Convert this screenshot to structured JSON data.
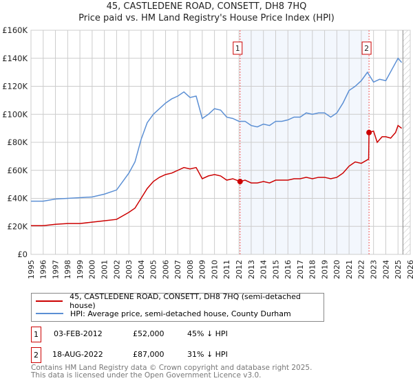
{
  "chart_data": {
    "type": "line",
    "title": "45, CASTLEDENE ROAD, CONSETT, DH8 7HQ",
    "subtitle": "Price paid vs. HM Land Registry's House Price Index (HPI)",
    "xlim": [
      1995,
      2026
    ],
    "ylim": [
      0,
      160000
    ],
    "x_ticks": [
      "1995",
      "1996",
      "1997",
      "1998",
      "1999",
      "2000",
      "2001",
      "2002",
      "2003",
      "2004",
      "2005",
      "2006",
      "2007",
      "2008",
      "2009",
      "2010",
      "2011",
      "2012",
      "2013",
      "2014",
      "2015",
      "2016",
      "2017",
      "2018",
      "2019",
      "2020",
      "2021",
      "2022",
      "2023",
      "2024",
      "2025",
      "2026"
    ],
    "y_ticks": [
      {
        "v": 0,
        "label": "£0"
      },
      {
        "v": 20000,
        "label": "£20K"
      },
      {
        "v": 40000,
        "label": "£40K"
      },
      {
        "v": 60000,
        "label": "£60K"
      },
      {
        "v": 80000,
        "label": "£80K"
      },
      {
        "v": 100000,
        "label": "£100K"
      },
      {
        "v": 120000,
        "label": "£120K"
      },
      {
        "v": 140000,
        "label": "£140K"
      },
      {
        "v": 160000,
        "label": "£160K"
      }
    ],
    "grid": true,
    "shaded_range": [
      2012.09,
      2022.63
    ],
    "forecast_hatch_from": 2025.4,
    "series": [
      {
        "name": "45, CASTLEDENE ROAD, CONSETT, DH8 7HQ (semi-detached house)",
        "color": "#cc0000",
        "x": [
          1995,
          1996,
          1997,
          1998,
          1999,
          2000,
          2001,
          2002,
          2003,
          2003.5,
          2004,
          2004.5,
          2005,
          2005.5,
          2006,
          2006.5,
          2007,
          2007.5,
          2008,
          2008.5,
          2009,
          2009.5,
          2010,
          2010.5,
          2011,
          2011.5,
          2012.09,
          2012.5,
          2013,
          2013.5,
          2014,
          2014.5,
          2015,
          2015.5,
          2016,
          2016.5,
          2017,
          2017.5,
          2018,
          2018.5,
          2019,
          2019.5,
          2020,
          2020.5,
          2021,
          2021.5,
          2022,
          2022.6,
          2022.63,
          2023,
          2023.3,
          2023.7,
          2024,
          2024.4,
          2024.8,
          2025,
          2025.3
        ],
        "y": [
          20500,
          20500,
          21500,
          22000,
          22000,
          23000,
          24000,
          25000,
          30000,
          33000,
          40000,
          47000,
          52000,
          55000,
          57000,
          58000,
          60000,
          62000,
          61000,
          62000,
          54000,
          56000,
          57000,
          56000,
          53000,
          54000,
          52000,
          53000,
          51000,
          51000,
          52000,
          51000,
          53000,
          53000,
          53000,
          54000,
          54000,
          55000,
          54000,
          55000,
          55000,
          54000,
          55000,
          58000,
          63000,
          66000,
          65000,
          68000,
          87000,
          88000,
          80000,
          84000,
          84000,
          83000,
          87000,
          92000,
          90000
        ]
      },
      {
        "name": "HPI: Average price, semi-detached house, County Durham",
        "color": "#5b8fd4",
        "x": [
          1995,
          1996,
          1997,
          1998,
          1999,
          2000,
          2001,
          2002,
          2003,
          2003.5,
          2004,
          2004.5,
          2005,
          2005.5,
          2006,
          2006.5,
          2007,
          2007.5,
          2008,
          2008.5,
          2009,
          2009.5,
          2010,
          2010.5,
          2011,
          2011.5,
          2012,
          2012.5,
          2013,
          2013.5,
          2014,
          2014.5,
          2015,
          2015.5,
          2016,
          2016.5,
          2017,
          2017.5,
          2018,
          2018.5,
          2019,
          2019.5,
          2020,
          2020.5,
          2021,
          2021.5,
          2022,
          2022.5,
          2023,
          2023.5,
          2024,
          2024.5,
          2025,
          2025.3
        ],
        "y": [
          38000,
          38000,
          39500,
          40000,
          40500,
          41000,
          43000,
          46000,
          58000,
          66000,
          82000,
          94000,
          100000,
          104000,
          108000,
          111000,
          113000,
          116000,
          112000,
          113000,
          97000,
          100000,
          104000,
          103000,
          98000,
          97000,
          95000,
          95000,
          92000,
          91000,
          93000,
          92000,
          95000,
          95000,
          96000,
          98000,
          98000,
          101000,
          100000,
          101000,
          101000,
          98000,
          101000,
          108000,
          117000,
          120000,
          124000,
          130000,
          123000,
          125000,
          124000,
          132000,
          140000,
          137000
        ]
      }
    ],
    "annotations": [
      {
        "label": "1",
        "x": 2012.09,
        "y": 52000
      },
      {
        "label": "2",
        "x": 2022.63,
        "y": 87000
      }
    ]
  },
  "legend": {
    "items": [
      {
        "label": "45, CASTLEDENE ROAD, CONSETT, DH8 7HQ (semi-detached house)",
        "color": "#cc0000"
      },
      {
        "label": "HPI: Average price, semi-detached house, County Durham",
        "color": "#5b8fd4"
      }
    ]
  },
  "transactions": [
    {
      "num": "1",
      "date": "03-FEB-2012",
      "price": "£52,000",
      "hpi": "45% ↓ HPI"
    },
    {
      "num": "2",
      "date": "18-AUG-2022",
      "price": "£87,000",
      "hpi": "31% ↓ HPI"
    }
  ],
  "footer": {
    "line1": "Contains HM Land Registry data © Crown copyright and database right 2025.",
    "line2": "This data is licensed under the Open Government Licence v3.0."
  }
}
